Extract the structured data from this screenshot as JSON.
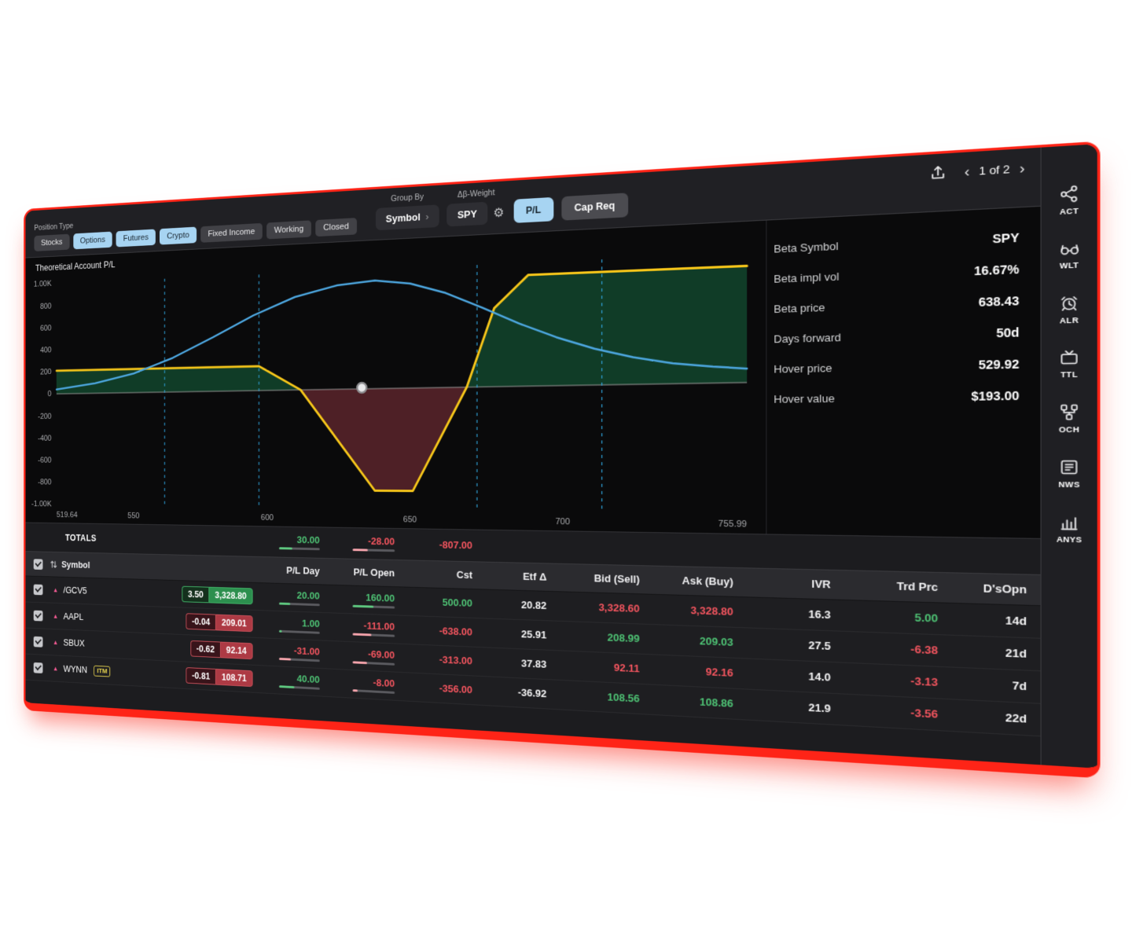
{
  "icons": {
    "chevron_left": "‹",
    "chevron_right": "›",
    "gear": "⚙",
    "triangle_up": "▲"
  },
  "header": {
    "position_type_label": "Position Type",
    "position_chips": [
      {
        "label": "Stocks",
        "selected": false
      },
      {
        "label": "Options",
        "selected": true
      },
      {
        "label": "Futures",
        "selected": true
      },
      {
        "label": "Crypto",
        "selected": true
      },
      {
        "label": "Fixed Income",
        "selected": false
      },
      {
        "label": "Working",
        "selected": false
      },
      {
        "label": "Closed",
        "selected": false
      }
    ],
    "group_by": {
      "label": "Group By",
      "value": "Symbol"
    },
    "beta_weight": {
      "label": "Δβ-Weight",
      "value": "SPY"
    },
    "pl_button_label": "P/L",
    "cap_req_button_label": "Cap Req",
    "pagination": "1 of 2"
  },
  "chart": {
    "title": "Theoretical Account P/L"
  },
  "chart_data": {
    "type": "line",
    "title": "Theoretical Account P/L",
    "xlim": [
      519.64,
      755.99
    ],
    "ylim": [
      -1000,
      1000
    ],
    "grid": false,
    "yticks": [
      {
        "v": 1000,
        "label": "1.00K"
      },
      {
        "v": 800,
        "label": "800"
      },
      {
        "v": 600,
        "label": "600"
      },
      {
        "v": 400,
        "label": "400"
      },
      {
        "v": 200,
        "label": "200"
      },
      {
        "v": 0,
        "label": "0"
      },
      {
        "v": -200,
        "label": "-200"
      },
      {
        "v": -400,
        "label": "-400"
      },
      {
        "v": -600,
        "label": "-600"
      },
      {
        "v": -800,
        "label": "-800"
      },
      {
        "v": -1000,
        "label": "-1.00K"
      }
    ],
    "xticks": [
      {
        "v": 519.64,
        "label": "519.64",
        "anchor": "start"
      },
      {
        "v": 550,
        "label": "550",
        "anchor": "middle"
      },
      {
        "v": 600,
        "label": "600",
        "anchor": "middle"
      },
      {
        "v": 650,
        "label": "650",
        "anchor": "middle"
      },
      {
        "v": 700,
        "label": "700",
        "anchor": "middle"
      },
      {
        "v": 755.99,
        "label": "755.99",
        "anchor": "end"
      }
    ],
    "series": [
      {
        "name": "pl_at_expiration",
        "color": "#f5c51a",
        "width": 3,
        "points": [
          [
            519.64,
            210
          ],
          [
            597,
            210
          ],
          [
            612,
            0
          ],
          [
            638,
            -855
          ],
          [
            651,
            -855
          ],
          [
            669,
            0
          ],
          [
            678,
            640
          ],
          [
            689,
            900
          ],
          [
            755.99,
            900
          ]
        ]
      },
      {
        "name": "probability_curve",
        "color": "#4da7e0",
        "width": 2.5,
        "points": [
          [
            519.64,
            40
          ],
          [
            535,
            90
          ],
          [
            550,
            170
          ],
          [
            565,
            300
          ],
          [
            580,
            470
          ],
          [
            595,
            650
          ],
          [
            610,
            795
          ],
          [
            625,
            880
          ],
          [
            638,
            907
          ],
          [
            650,
            870
          ],
          [
            662,
            780
          ],
          [
            674,
            650
          ],
          [
            686,
            510
          ],
          [
            698,
            390
          ],
          [
            710,
            290
          ],
          [
            722,
            215
          ],
          [
            734,
            160
          ],
          [
            746,
            128
          ],
          [
            755.99,
            108
          ]
        ]
      }
    ],
    "fills": [
      {
        "name": "profit-zone-left",
        "color": "#103c27",
        "points": [
          [
            519.64,
            0
          ],
          [
            519.64,
            210
          ],
          [
            597,
            210
          ],
          [
            612,
            0
          ]
        ]
      },
      {
        "name": "loss-zone",
        "color": "#4e2026",
        "points": [
          [
            612,
            0
          ],
          [
            638,
            -855
          ],
          [
            651,
            -855
          ],
          [
            669,
            0
          ]
        ]
      },
      {
        "name": "profit-zone-right",
        "color": "#103c27",
        "points": [
          [
            669,
            0
          ],
          [
            678,
            640
          ],
          [
            689,
            900
          ],
          [
            755.99,
            900
          ],
          [
            755.99,
            0
          ]
        ]
      }
    ],
    "vlines": {
      "color": "#2f9fd6",
      "values": [
        561.9,
        597.0,
        672.4,
        712.3
      ]
    },
    "zero_line_color": "#9a9a9a",
    "hover_point": {
      "x": 633.5,
      "y": 10
    }
  },
  "info_panel": {
    "rows": [
      {
        "label": "Beta Symbol",
        "value": "SPY"
      },
      {
        "label": "Beta impl vol",
        "value": "16.67%"
      },
      {
        "label": "Beta price",
        "value": "638.43"
      },
      {
        "label": "Days forward",
        "value": "50d"
      },
      {
        "label": "Hover price",
        "value": "529.92"
      },
      {
        "label": "Hover value",
        "value": "$193.00"
      }
    ]
  },
  "sidebar": {
    "items": [
      {
        "label": "ACT",
        "icon": "share-nodes-icon"
      },
      {
        "label": "WLT",
        "icon": "glasses-icon"
      },
      {
        "label": "ALR",
        "icon": "alarm-clock-icon"
      },
      {
        "label": "TTL",
        "icon": "tv-icon"
      },
      {
        "label": "OCH",
        "icon": "org-chart-icon"
      },
      {
        "label": "NWS",
        "icon": "newspaper-icon"
      },
      {
        "label": "ANYS",
        "icon": "bar-chart-icon"
      }
    ]
  },
  "positions_table": {
    "totals_label": "TOTALS",
    "totals": {
      "pl_day": {
        "value": "30.00",
        "sign": "pos",
        "bar": 0.33
      },
      "pl_open": {
        "value": "-28.00",
        "sign": "neg",
        "bar": 0.36
      },
      "cst": {
        "value": "-807.00",
        "sign": "neg"
      }
    },
    "columns": [
      {
        "key": "symbol",
        "label": "Symbol"
      },
      {
        "key": "pl_day",
        "label": "P/L Day"
      },
      {
        "key": "pl_open",
        "label": "P/L Open"
      },
      {
        "key": "cst",
        "label": "Cst"
      },
      {
        "key": "etf_delta",
        "label": "Etf Δ"
      },
      {
        "key": "bid",
        "label": "Bid (Sell)"
      },
      {
        "key": "ask",
        "label": "Ask (Buy)"
      },
      {
        "key": "ivr",
        "label": "IVR"
      },
      {
        "key": "trd_prc",
        "label": "Trd Prc"
      },
      {
        "key": "dsopn",
        "label": "D'sOpn"
      }
    ],
    "rows": [
      {
        "symbol": "/GCV5",
        "checked": true,
        "itm": false,
        "itm_label": "",
        "badge": {
          "change": "3.50",
          "price": "3,328.80",
          "sign": "pos"
        },
        "cells": {
          "pl_day": {
            "value": "20.00",
            "sign": "pos",
            "bar": 0.28
          },
          "pl_open": {
            "value": "160.00",
            "sign": "pos",
            "bar": 0.5
          },
          "cst": {
            "value": "500.00",
            "sign": "pos"
          },
          "etf_delta": {
            "value": "20.82",
            "sign": "neutral"
          },
          "bid": {
            "value": "3,328.60",
            "sign": "neg"
          },
          "ask": {
            "value": "3,328.80",
            "sign": "neg"
          },
          "ivr": {
            "value": "16.3",
            "sign": "neutral"
          },
          "trd_prc": {
            "value": "5.00",
            "sign": "pos"
          },
          "dsopn": {
            "value": "14d",
            "sign": "neutral"
          }
        }
      },
      {
        "symbol": "AAPL",
        "checked": true,
        "itm": false,
        "itm_label": "",
        "badge": {
          "change": "-0.04",
          "price": "209.01",
          "sign": "neg"
        },
        "cells": {
          "pl_day": {
            "value": "1.00",
            "sign": "pos",
            "bar": 0.07
          },
          "pl_open": {
            "value": "-111.00",
            "sign": "neg",
            "bar": 0.45
          },
          "cst": {
            "value": "-638.00",
            "sign": "neg"
          },
          "etf_delta": {
            "value": "25.91",
            "sign": "neutral"
          },
          "bid": {
            "value": "208.99",
            "sign": "pos"
          },
          "ask": {
            "value": "209.03",
            "sign": "pos"
          },
          "ivr": {
            "value": "27.5",
            "sign": "neutral"
          },
          "trd_prc": {
            "value": "-6.38",
            "sign": "neg"
          },
          "dsopn": {
            "value": "21d",
            "sign": "neutral"
          }
        }
      },
      {
        "symbol": "SBUX",
        "checked": true,
        "itm": false,
        "itm_label": "",
        "badge": {
          "change": "-0.62",
          "price": "92.14",
          "sign": "neg"
        },
        "cells": {
          "pl_day": {
            "value": "-31.00",
            "sign": "neg",
            "bar": 0.3
          },
          "pl_open": {
            "value": "-69.00",
            "sign": "neg",
            "bar": 0.35
          },
          "cst": {
            "value": "-313.00",
            "sign": "neg"
          },
          "etf_delta": {
            "value": "37.83",
            "sign": "neutral"
          },
          "bid": {
            "value": "92.11",
            "sign": "neg"
          },
          "ask": {
            "value": "92.16",
            "sign": "neg"
          },
          "ivr": {
            "value": "14.0",
            "sign": "neutral"
          },
          "trd_prc": {
            "value": "-3.13",
            "sign": "neg"
          },
          "dsopn": {
            "value": "7d",
            "sign": "neutral"
          }
        }
      },
      {
        "symbol": "WYNN",
        "checked": true,
        "itm": true,
        "itm_label": "ITM",
        "badge": {
          "change": "-0.81",
          "price": "108.71",
          "sign": "neg"
        },
        "cells": {
          "pl_day": {
            "value": "40.00",
            "sign": "pos",
            "bar": 0.38
          },
          "pl_open": {
            "value": "-8.00",
            "sign": "neg",
            "bar": 0.12
          },
          "cst": {
            "value": "-356.00",
            "sign": "neg"
          },
          "etf_delta": {
            "value": "-36.92",
            "sign": "neutral"
          },
          "bid": {
            "value": "108.56",
            "sign": "pos"
          },
          "ask": {
            "value": "108.86",
            "sign": "pos"
          },
          "ivr": {
            "value": "21.9",
            "sign": "neutral"
          },
          "trd_prc": {
            "value": "-3.56",
            "sign": "neg"
          },
          "dsopn": {
            "value": "22d",
            "sign": "neutral"
          }
        }
      }
    ]
  },
  "colors": {
    "pos": "#4ec274",
    "neg": "#f4555f",
    "accent_blue": "#a7d4f2",
    "pl_line": "#f5c51a",
    "prob_curve": "#4da7e0",
    "frame_red": "#fe2417"
  }
}
